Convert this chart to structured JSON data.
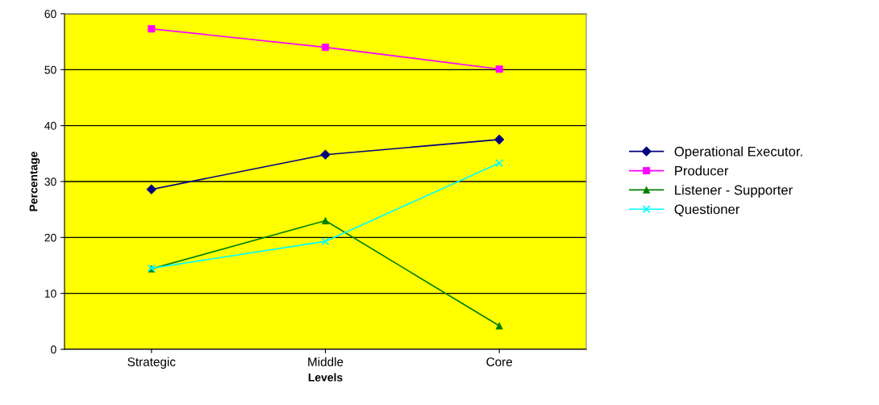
{
  "chart_data": {
    "type": "line",
    "xlabel": "Levels",
    "ylabel": "Percentage",
    "categories": [
      "Strategic",
      "Middle",
      "Core"
    ],
    "series": [
      {
        "name": "Operational Executor.",
        "color": "#000080",
        "marker": "diamond",
        "values": [
          28.6,
          34.8,
          37.5
        ]
      },
      {
        "name": "Producer",
        "color": "#ff00ff",
        "marker": "square",
        "values": [
          57.3,
          54.0,
          50.1
        ]
      },
      {
        "name": "Listener - Supporter",
        "color": "#008000",
        "marker": "triangle",
        "values": [
          14.4,
          23.0,
          4.2
        ]
      },
      {
        "name": "Questioner",
        "color": "#00ffff",
        "marker": "cross",
        "values": [
          14.5,
          19.3,
          33.3
        ]
      }
    ],
    "ylim": [
      0,
      60
    ],
    "yticks": [
      0,
      10,
      20,
      30,
      40,
      50,
      60
    ],
    "grid": "y",
    "legend": "right"
  }
}
